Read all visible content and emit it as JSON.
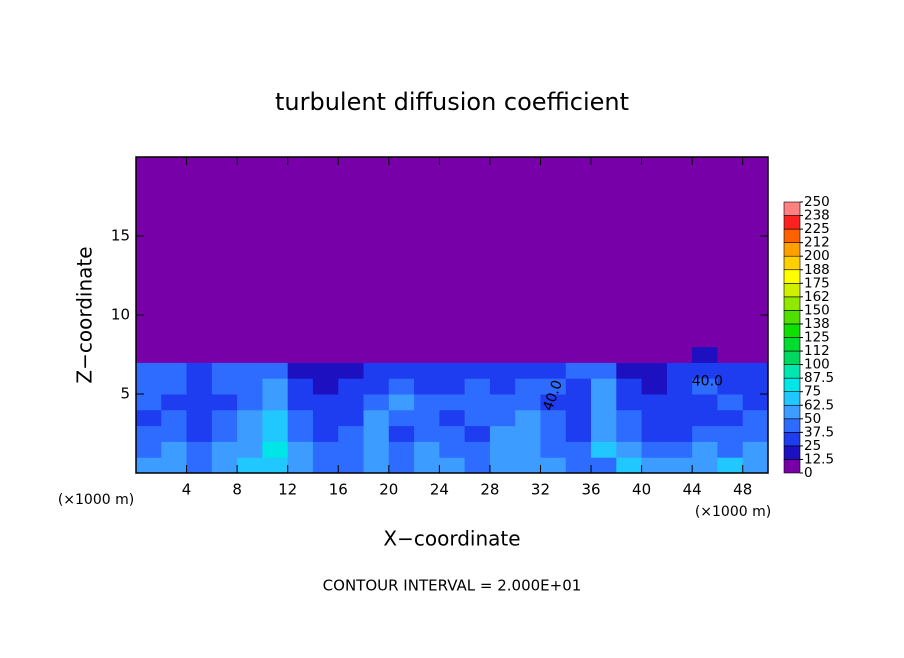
{
  "chart_data": {
    "type": "heatmap",
    "title": "turbulent diffusion coefficient",
    "xlabel": "X−coordinate",
    "ylabel": "Z−coordinate",
    "x_unit_labels": [
      "(×1000 m)",
      "(×1000 m)"
    ],
    "footnote": "CONTOUR INTERVAL = 2.000E+01",
    "annotations": [
      "40.0",
      "40.0"
    ],
    "xlim": [
      0,
      50
    ],
    "ylim": [
      0,
      20
    ],
    "xticks": [
      4,
      8,
      12,
      16,
      20,
      24,
      28,
      32,
      36,
      40,
      44,
      48
    ],
    "yticks": [
      5,
      10,
      15
    ],
    "x_edges": [
      0,
      2,
      4,
      6,
      8,
      10,
      12,
      14,
      16,
      18,
      20,
      22,
      24,
      26,
      28,
      30,
      32,
      34,
      36,
      38,
      40,
      42,
      44,
      46,
      48,
      50
    ],
    "y_edges": [
      0,
      1,
      2,
      3,
      4,
      5,
      6,
      7,
      8,
      20
    ],
    "z": [
      [
        55,
        60,
        45,
        50,
        65,
        70,
        55,
        45,
        40,
        50,
        45,
        55,
        50,
        45,
        60,
        55,
        50,
        45,
        40,
        70,
        55,
        60,
        50,
        65,
        60
      ],
      [
        45,
        50,
        40,
        55,
        60,
        75,
        50,
        40,
        45,
        55,
        40,
        50,
        45,
        40,
        55,
        60,
        45,
        40,
        65,
        50,
        45,
        40,
        55,
        45,
        50
      ],
      [
        40,
        45,
        35,
        45,
        55,
        70,
        45,
        35,
        40,
        50,
        35,
        45,
        40,
        35,
        50,
        55,
        40,
        35,
        60,
        45,
        35,
        30,
        40,
        40,
        45
      ],
      [
        35,
        40,
        30,
        40,
        50,
        65,
        40,
        30,
        35,
        55,
        40,
        45,
        35,
        40,
        45,
        50,
        40,
        30,
        55,
        40,
        30,
        25,
        35,
        35,
        40
      ],
      [
        40,
        35,
        25,
        35,
        45,
        60,
        35,
        25,
        30,
        45,
        50,
        40,
        40,
        45,
        40,
        45,
        35,
        30,
        50,
        35,
        30,
        25,
        35,
        40,
        35
      ],
      [
        45,
        40,
        30,
        40,
        40,
        50,
        30,
        20,
        25,
        35,
        45,
        35,
        35,
        40,
        35,
        40,
        40,
        35,
        55,
        25,
        20,
        35,
        40,
        35,
        30
      ],
      [
        40,
        45,
        35,
        45,
        40,
        45,
        20,
        15,
        15,
        25,
        35,
        30,
        30,
        35,
        30,
        30,
        35,
        40,
        45,
        15,
        15,
        30,
        35,
        30,
        25
      ],
      [
        5,
        5,
        5,
        5,
        10,
        10,
        5,
        5,
        5,
        5,
        5,
        5,
        5,
        5,
        5,
        5,
        5,
        5,
        10,
        5,
        5,
        5,
        15,
        10,
        5
      ],
      [
        0,
        0,
        0,
        0,
        0,
        0,
        0,
        0,
        0,
        0,
        0,
        0,
        0,
        0,
        0,
        0,
        0,
        0,
        0,
        0,
        0,
        0,
        0,
        0,
        0
      ]
    ],
    "colorbar_ticks": [
      0,
      12.5,
      25,
      37.5,
      50,
      62.5,
      75,
      87.5,
      100,
      {
        "value": 112.5,
        "label": "112"
      },
      125,
      {
        "value": 137.5,
        "label": "138"
      },
      150,
      {
        "value": 162.5,
        "label": "162"
      },
      175,
      {
        "value": 187.5,
        "label": "188"
      },
      200,
      {
        "value": 212.5,
        "label": "212"
      },
      225,
      {
        "value": 237.5,
        "label": "238"
      },
      250
    ],
    "colorbar_colors": [
      "#7800a8",
      "#1c10c0",
      "#1e3cf0",
      "#2e6cff",
      "#3c9cff",
      "#20c8ff",
      "#00e6e6",
      "#00e8b0",
      "#00d860",
      "#00dc30",
      "#10e000",
      "#50e000",
      "#90e800",
      "#d0f000",
      "#ffff00",
      "#ffd000",
      "#ffa000",
      "#ff6000",
      "#ff2020",
      "#ff8080"
    ]
  }
}
